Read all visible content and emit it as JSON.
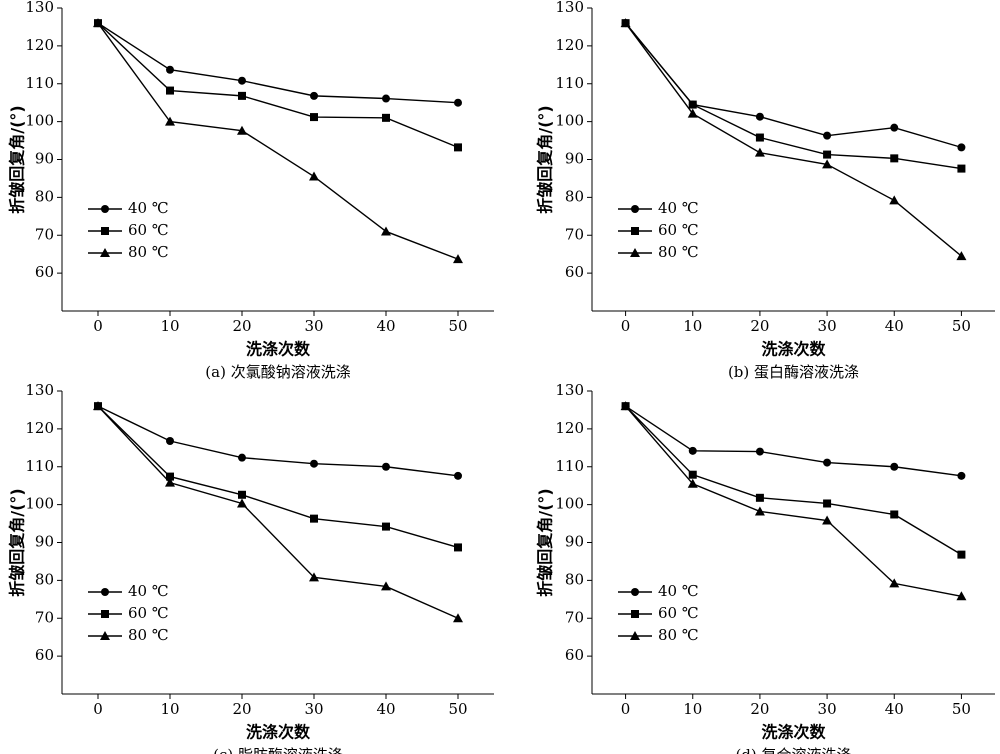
{
  "chart_data": [
    {
      "type": "line",
      "caption": "(a) 次氯酸钠溶液洗涤",
      "xlabel": "洗涤次数",
      "ylabel": "折皱回复角/(°)",
      "x": [
        0,
        10,
        20,
        30,
        40,
        50
      ],
      "xlim": [
        -5,
        55
      ],
      "xticks": [
        0,
        10,
        20,
        30,
        40,
        50
      ],
      "ylim": [
        50,
        130
      ],
      "yticks": [
        60,
        70,
        80,
        90,
        100,
        110,
        120,
        130
      ],
      "legend": "lower left",
      "series": [
        {
          "name": "40 ℃",
          "color": "#000000",
          "marker": "circle",
          "values": [
            126,
            113.7,
            110.8,
            106.8,
            106.1,
            105
          ]
        },
        {
          "name": "60 ℃",
          "color": "#000000",
          "marker": "square",
          "values": [
            126,
            108.2,
            106.8,
            101.2,
            101,
            93.2
          ]
        },
        {
          "name": "80 ℃",
          "color": "#000000",
          "marker": "triangle",
          "values": [
            126,
            100,
            97.6,
            85.5,
            71,
            63.7
          ]
        }
      ]
    },
    {
      "type": "line",
      "caption": "(b) 蛋白酶溶液洗涤",
      "xlabel": "洗涤次数",
      "ylabel": "折皱回复角/(°)",
      "x": [
        0,
        10,
        20,
        30,
        40,
        50
      ],
      "xlim": [
        -5,
        55
      ],
      "xticks": [
        0,
        10,
        20,
        30,
        40,
        50
      ],
      "ylim": [
        50,
        130
      ],
      "yticks": [
        60,
        70,
        80,
        90,
        100,
        110,
        120,
        130
      ],
      "legend": "lower left",
      "series": [
        {
          "name": "40 ℃",
          "color": "#000000",
          "marker": "circle",
          "values": [
            126,
            104.5,
            101.3,
            96.3,
            98.4,
            93.2
          ]
        },
        {
          "name": "60 ℃",
          "color": "#000000",
          "marker": "square",
          "values": [
            126,
            104.5,
            95.8,
            91.3,
            90.3,
            87.6
          ]
        },
        {
          "name": "80 ℃",
          "color": "#000000",
          "marker": "triangle",
          "values": [
            126,
            102.1,
            91.8,
            88.7,
            79.2,
            64.5
          ]
        }
      ]
    },
    {
      "type": "line",
      "caption": "(c) 脂肪酶溶液洗涤",
      "xlabel": "洗涤次数",
      "ylabel": "折皱回复角/(°)",
      "x": [
        0,
        10,
        20,
        30,
        40,
        50
      ],
      "xlim": [
        -5,
        55
      ],
      "xticks": [
        0,
        10,
        20,
        30,
        40,
        50
      ],
      "ylim": [
        50,
        130
      ],
      "yticks": [
        60,
        70,
        80,
        90,
        100,
        110,
        120,
        130
      ],
      "legend": "lower left",
      "series": [
        {
          "name": "40 ℃",
          "color": "#000000",
          "marker": "circle",
          "values": [
            126,
            116.8,
            112.4,
            110.8,
            110,
            107.6
          ]
        },
        {
          "name": "60 ℃",
          "color": "#000000",
          "marker": "square",
          "values": [
            126,
            107.4,
            102.6,
            96.3,
            94.2,
            88.7
          ]
        },
        {
          "name": "80 ℃",
          "color": "#000000",
          "marker": "triangle",
          "values": [
            126,
            105.8,
            100.3,
            80.8,
            78.4,
            70
          ]
        }
      ]
    },
    {
      "type": "line",
      "caption": "(d) 复合溶液洗涤",
      "xlabel": "洗涤次数",
      "ylabel": "折皱回复角/(°)",
      "x": [
        0,
        10,
        20,
        30,
        40,
        50
      ],
      "xlim": [
        -5,
        55
      ],
      "xticks": [
        0,
        10,
        20,
        30,
        40,
        50
      ],
      "ylim": [
        50,
        130
      ],
      "yticks": [
        60,
        70,
        80,
        90,
        100,
        110,
        120,
        130
      ],
      "legend": "lower left",
      "series": [
        {
          "name": "40 ℃",
          "color": "#000000",
          "marker": "circle",
          "values": [
            126,
            114.2,
            114,
            111.1,
            110,
            107.6
          ]
        },
        {
          "name": "60 ℃",
          "color": "#000000",
          "marker": "square",
          "values": [
            126,
            107.9,
            101.8,
            100.3,
            97.4,
            86.8
          ]
        },
        {
          "name": "80 ℃",
          "color": "#000000",
          "marker": "triangle",
          "values": [
            126,
            105.5,
            98.2,
            95.8,
            79.2,
            75.8
          ]
        }
      ]
    }
  ]
}
